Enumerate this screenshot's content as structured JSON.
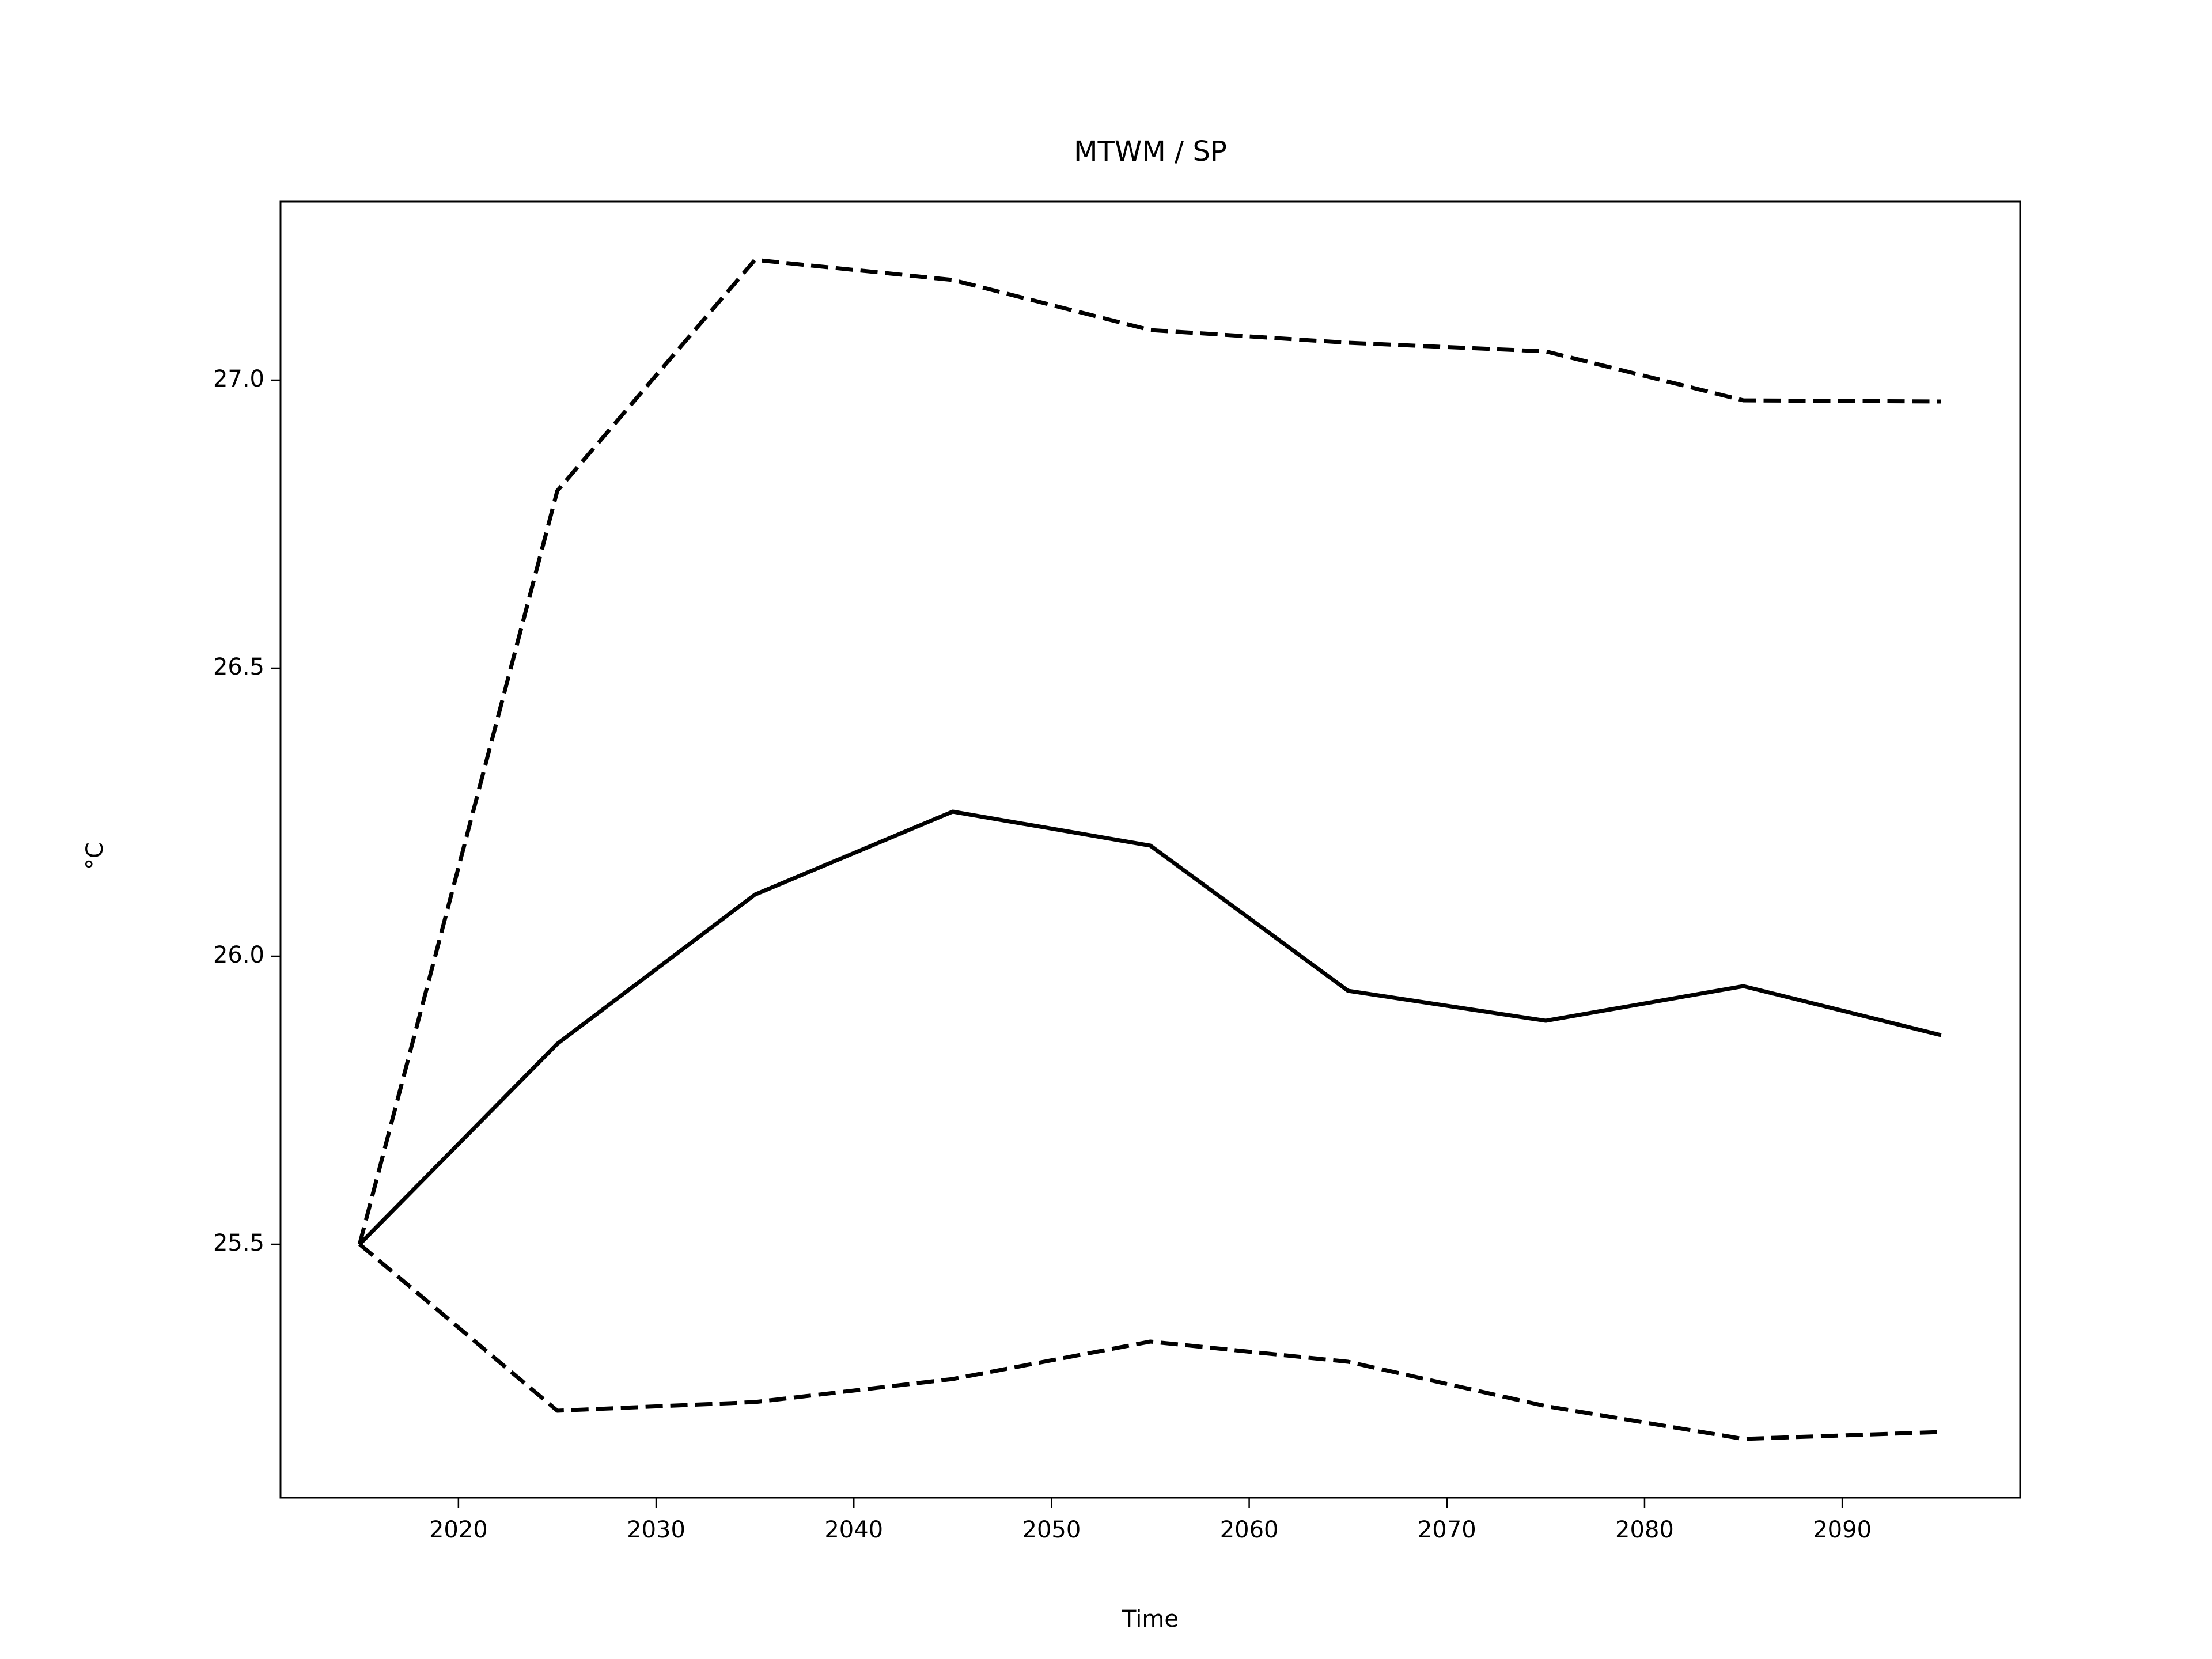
{
  "chart_data": {
    "type": "line",
    "title": "MTWM / SP",
    "x_label": "Time",
    "y_label": "°C",
    "x": [
      2015,
      2025,
      2035,
      2045,
      2055,
      2065,
      2075,
      2085,
      2095
    ],
    "series": [
      {
        "color": "#000000",
        "dashed": false,
        "values": [
          25.5,
          25.848,
          26.107,
          26.251,
          26.192,
          25.94,
          25.888,
          25.948,
          25.863
        ]
      },
      {
        "color": "#000000",
        "dashed": true,
        "values": [
          25.5,
          26.808,
          27.209,
          27.174,
          27.087,
          27.065,
          27.05,
          26.965,
          26.963
        ]
      },
      {
        "color": "#000000",
        "dashed": true,
        "values": [
          25.5,
          25.211,
          25.226,
          25.266,
          25.331,
          25.296,
          25.219,
          25.162,
          25.174
        ]
      }
    ],
    "xlim": [
      2011,
      2099
    ],
    "ylim": [
      25.06,
      27.31
    ],
    "xticks": [
      2020,
      2030,
      2040,
      2050,
      2060,
      2070,
      2080,
      2090
    ],
    "yticks": [
      {
        "value": 25.5,
        "label": "25.5"
      },
      {
        "value": 26.0,
        "label": "26.0"
      },
      {
        "value": 26.5,
        "label": "26.5"
      },
      {
        "value": 27.0,
        "label": "27.0"
      }
    ],
    "grid": false
  }
}
